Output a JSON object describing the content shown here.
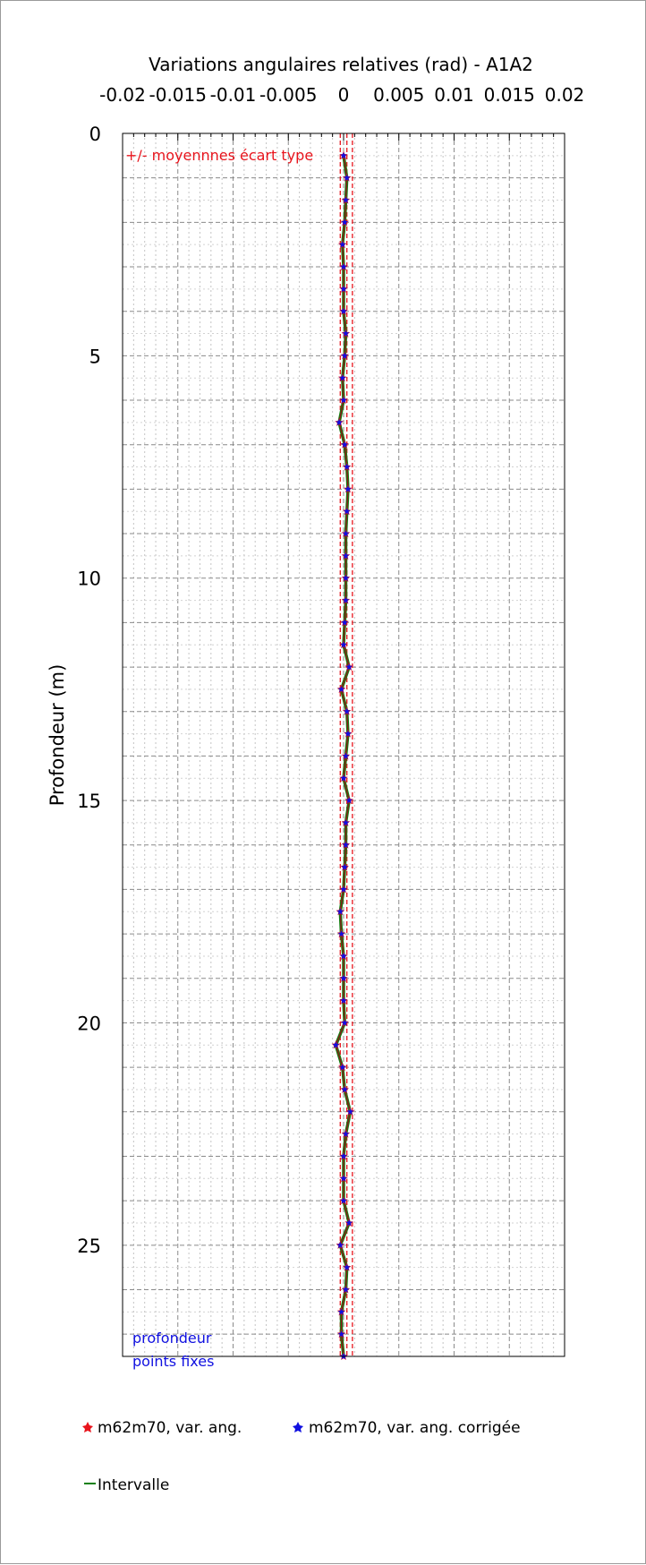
{
  "chart_data": {
    "type": "line",
    "title": "Variations angulaires relatives (rad) - A1A2",
    "xlabel": "",
    "ylabel": "Profondeur (m)",
    "xlim": [
      -0.02,
      0.02
    ],
    "ylim": [
      0,
      27.5
    ],
    "y_reversed": true,
    "x_ticks": [
      -0.02,
      -0.015,
      -0.01,
      -0.005,
      0,
      0.005,
      0.01,
      0.015,
      0.02
    ],
    "x_tick_labels": [
      "-0.02",
      "-0.015",
      "-0.01",
      "-0.005",
      "0",
      "0.005",
      "0.01",
      "0.015",
      "0.02"
    ],
    "y_ticks": [
      0,
      5,
      10,
      15,
      20,
      25
    ],
    "y_tick_labels": [
      "0",
      "5",
      "10",
      "15",
      "20",
      "25"
    ],
    "grid": true,
    "std_band": {
      "label": "+/- moyennnes écart type",
      "lines": [
        -0.0003,
        0.0003,
        0.0008
      ],
      "color": "#e8141c"
    },
    "annotation": {
      "lines": [
        "profondeur",
        "points fixes"
      ],
      "color": "#1010e0"
    },
    "depths": [
      0.5,
      1,
      1.5,
      2,
      2.5,
      3,
      3.5,
      4,
      4.5,
      5,
      5.5,
      6,
      6.5,
      7,
      7.5,
      8,
      8.5,
      9,
      9.5,
      10,
      10.5,
      11,
      11.5,
      12,
      12.5,
      13,
      13.5,
      14,
      14.5,
      15,
      15.5,
      16,
      16.5,
      17,
      17.5,
      18,
      18.5,
      19,
      19.5,
      20,
      20.5,
      21,
      21.5,
      22,
      22.5,
      23,
      23.5,
      24,
      24.5,
      25,
      25.5,
      26,
      26.5,
      27,
      27.5
    ],
    "series": [
      {
        "name": "m62m70, var. ang.",
        "color": "#e8141c",
        "values": [
          0,
          0.0003,
          0.0002,
          0.0001,
          -0.0001,
          0,
          0,
          0,
          0.0002,
          0.0001,
          -0.0001,
          0,
          -0.0004,
          0.0001,
          0.0003,
          0.0004,
          0.0003,
          0.0002,
          0.0002,
          0.0002,
          0.0002,
          0.0001,
          0,
          0.0005,
          -0.0002,
          0.0003,
          0.0004,
          0.0002,
          0,
          0.0005,
          0.0002,
          0.0002,
          0.0001,
          0,
          -0.0003,
          -0.0002,
          0,
          0,
          0,
          0.0001,
          -0.0007,
          -0.0001,
          0.0001,
          0.0006,
          0.0002,
          0,
          0,
          0,
          0.0005,
          -0.0003,
          0.0003,
          0.0002,
          -0.0002,
          -0.0002,
          0
        ]
      },
      {
        "name": "m62m70, var. ang. corrigée",
        "color": "#1010e0",
        "values": [
          0,
          0.0003,
          0.0002,
          0.0001,
          -0.0001,
          0,
          0,
          0,
          0.0002,
          0.0001,
          -0.0001,
          0,
          -0.0004,
          0.0001,
          0.0003,
          0.0004,
          0.0003,
          0.0002,
          0.0002,
          0.0002,
          0.0002,
          0.0001,
          0,
          0.0005,
          -0.0002,
          0.0003,
          0.0004,
          0.0002,
          0,
          0.0005,
          0.0002,
          0.0002,
          0.0001,
          0,
          -0.0003,
          -0.0002,
          0,
          0,
          0,
          0.0001,
          -0.0007,
          -0.0001,
          0.0001,
          0.0006,
          0.0002,
          0,
          0,
          0,
          0.0005,
          -0.0003,
          0.0003,
          0.0002,
          -0.0002,
          -0.0002,
          0
        ]
      },
      {
        "name": "Intervalle",
        "color": "#108010",
        "values": [
          0,
          0.0003,
          0.0002,
          0.0001,
          -0.0001,
          0,
          0,
          0,
          0.0002,
          0.0001,
          -0.0001,
          0,
          -0.0004,
          0.0001,
          0.0003,
          0.0004,
          0.0003,
          0.0002,
          0.0002,
          0.0002,
          0.0002,
          0.0001,
          0,
          0.0005,
          -0.0002,
          0.0003,
          0.0004,
          0.0002,
          0,
          0.0005,
          0.0002,
          0.0002,
          0.0001,
          0,
          -0.0003,
          -0.0002,
          0,
          0,
          0,
          0.0001,
          -0.0007,
          -0.0001,
          0.0001,
          0.0006,
          0.0002,
          0,
          0,
          0,
          0.0005,
          -0.0003,
          0.0003,
          0.0002,
          -0.0002,
          -0.0002,
          0
        ]
      }
    ],
    "legend_position": "bottom"
  }
}
